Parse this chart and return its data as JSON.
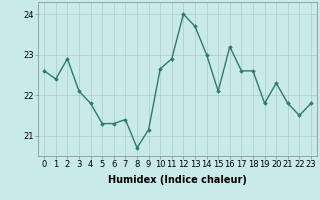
{
  "x": [
    0,
    1,
    2,
    3,
    4,
    5,
    6,
    7,
    8,
    9,
    10,
    11,
    12,
    13,
    14,
    15,
    16,
    17,
    18,
    19,
    20,
    21,
    22,
    23
  ],
  "y": [
    22.6,
    22.4,
    22.9,
    22.1,
    21.8,
    21.3,
    21.3,
    21.4,
    20.7,
    21.15,
    22.65,
    22.9,
    24.0,
    23.7,
    23.0,
    22.1,
    23.2,
    22.6,
    22.6,
    21.8,
    22.3,
    21.8,
    21.5,
    21.8
  ],
  "line_color": "#2e7b6e",
  "marker": "D",
  "marker_size": 1.8,
  "bg_color": "#c8eae8",
  "grid_color": "#b0c8c6",
  "xlabel": "Humidex (Indice chaleur)",
  "xlabel_fontsize": 7,
  "tick_fontsize": 6,
  "ylim": [
    20.5,
    24.3
  ],
  "yticks": [
    21,
    22,
    23,
    24
  ],
  "xlim": [
    -0.5,
    23.5
  ],
  "line_width": 1.0
}
